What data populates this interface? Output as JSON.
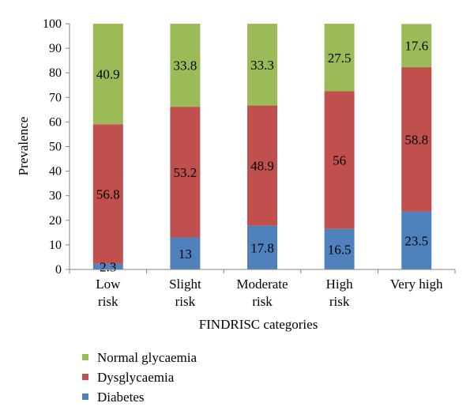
{
  "chart_data": {
    "type": "bar",
    "stacked": true,
    "xlabel": "FINDRISC categories",
    "ylabel": "Prevalence",
    "ylim": [
      0,
      100
    ],
    "yticks": [
      0,
      10,
      20,
      30,
      40,
      50,
      60,
      70,
      80,
      90,
      100
    ],
    "grid": false,
    "legend_position": "bottom-left",
    "categories": [
      [
        "Low",
        "risk"
      ],
      [
        "Slight",
        "risk"
      ],
      [
        "Moderate",
        "risk"
      ],
      [
        "High",
        "risk"
      ],
      [
        "Very high"
      ]
    ],
    "series": [
      {
        "name": "Diabetes",
        "color": "#4F81BD",
        "values": [
          2.3,
          13,
          17.8,
          16.5,
          23.5
        ],
        "labels": [
          "2.3",
          "13",
          "17.8",
          "16.5",
          "23.5"
        ]
      },
      {
        "name": "Dysglycaemia",
        "color": "#C0504D",
        "values": [
          56.8,
          53.2,
          48.9,
          56,
          58.8
        ],
        "labels": [
          "56.8",
          "53.2",
          "48.9",
          "56",
          "58.8"
        ]
      },
      {
        "name": "Normal glycaemia",
        "color": "#9BBB59",
        "values": [
          40.9,
          33.8,
          33.3,
          27.5,
          17.6
        ],
        "labels": [
          "40.9",
          "33.8",
          "33.3",
          "27.5",
          "17.6"
        ]
      }
    ],
    "legend_order": [
      "Normal glycaemia",
      "Dysglycaemia",
      "Diabetes"
    ]
  }
}
